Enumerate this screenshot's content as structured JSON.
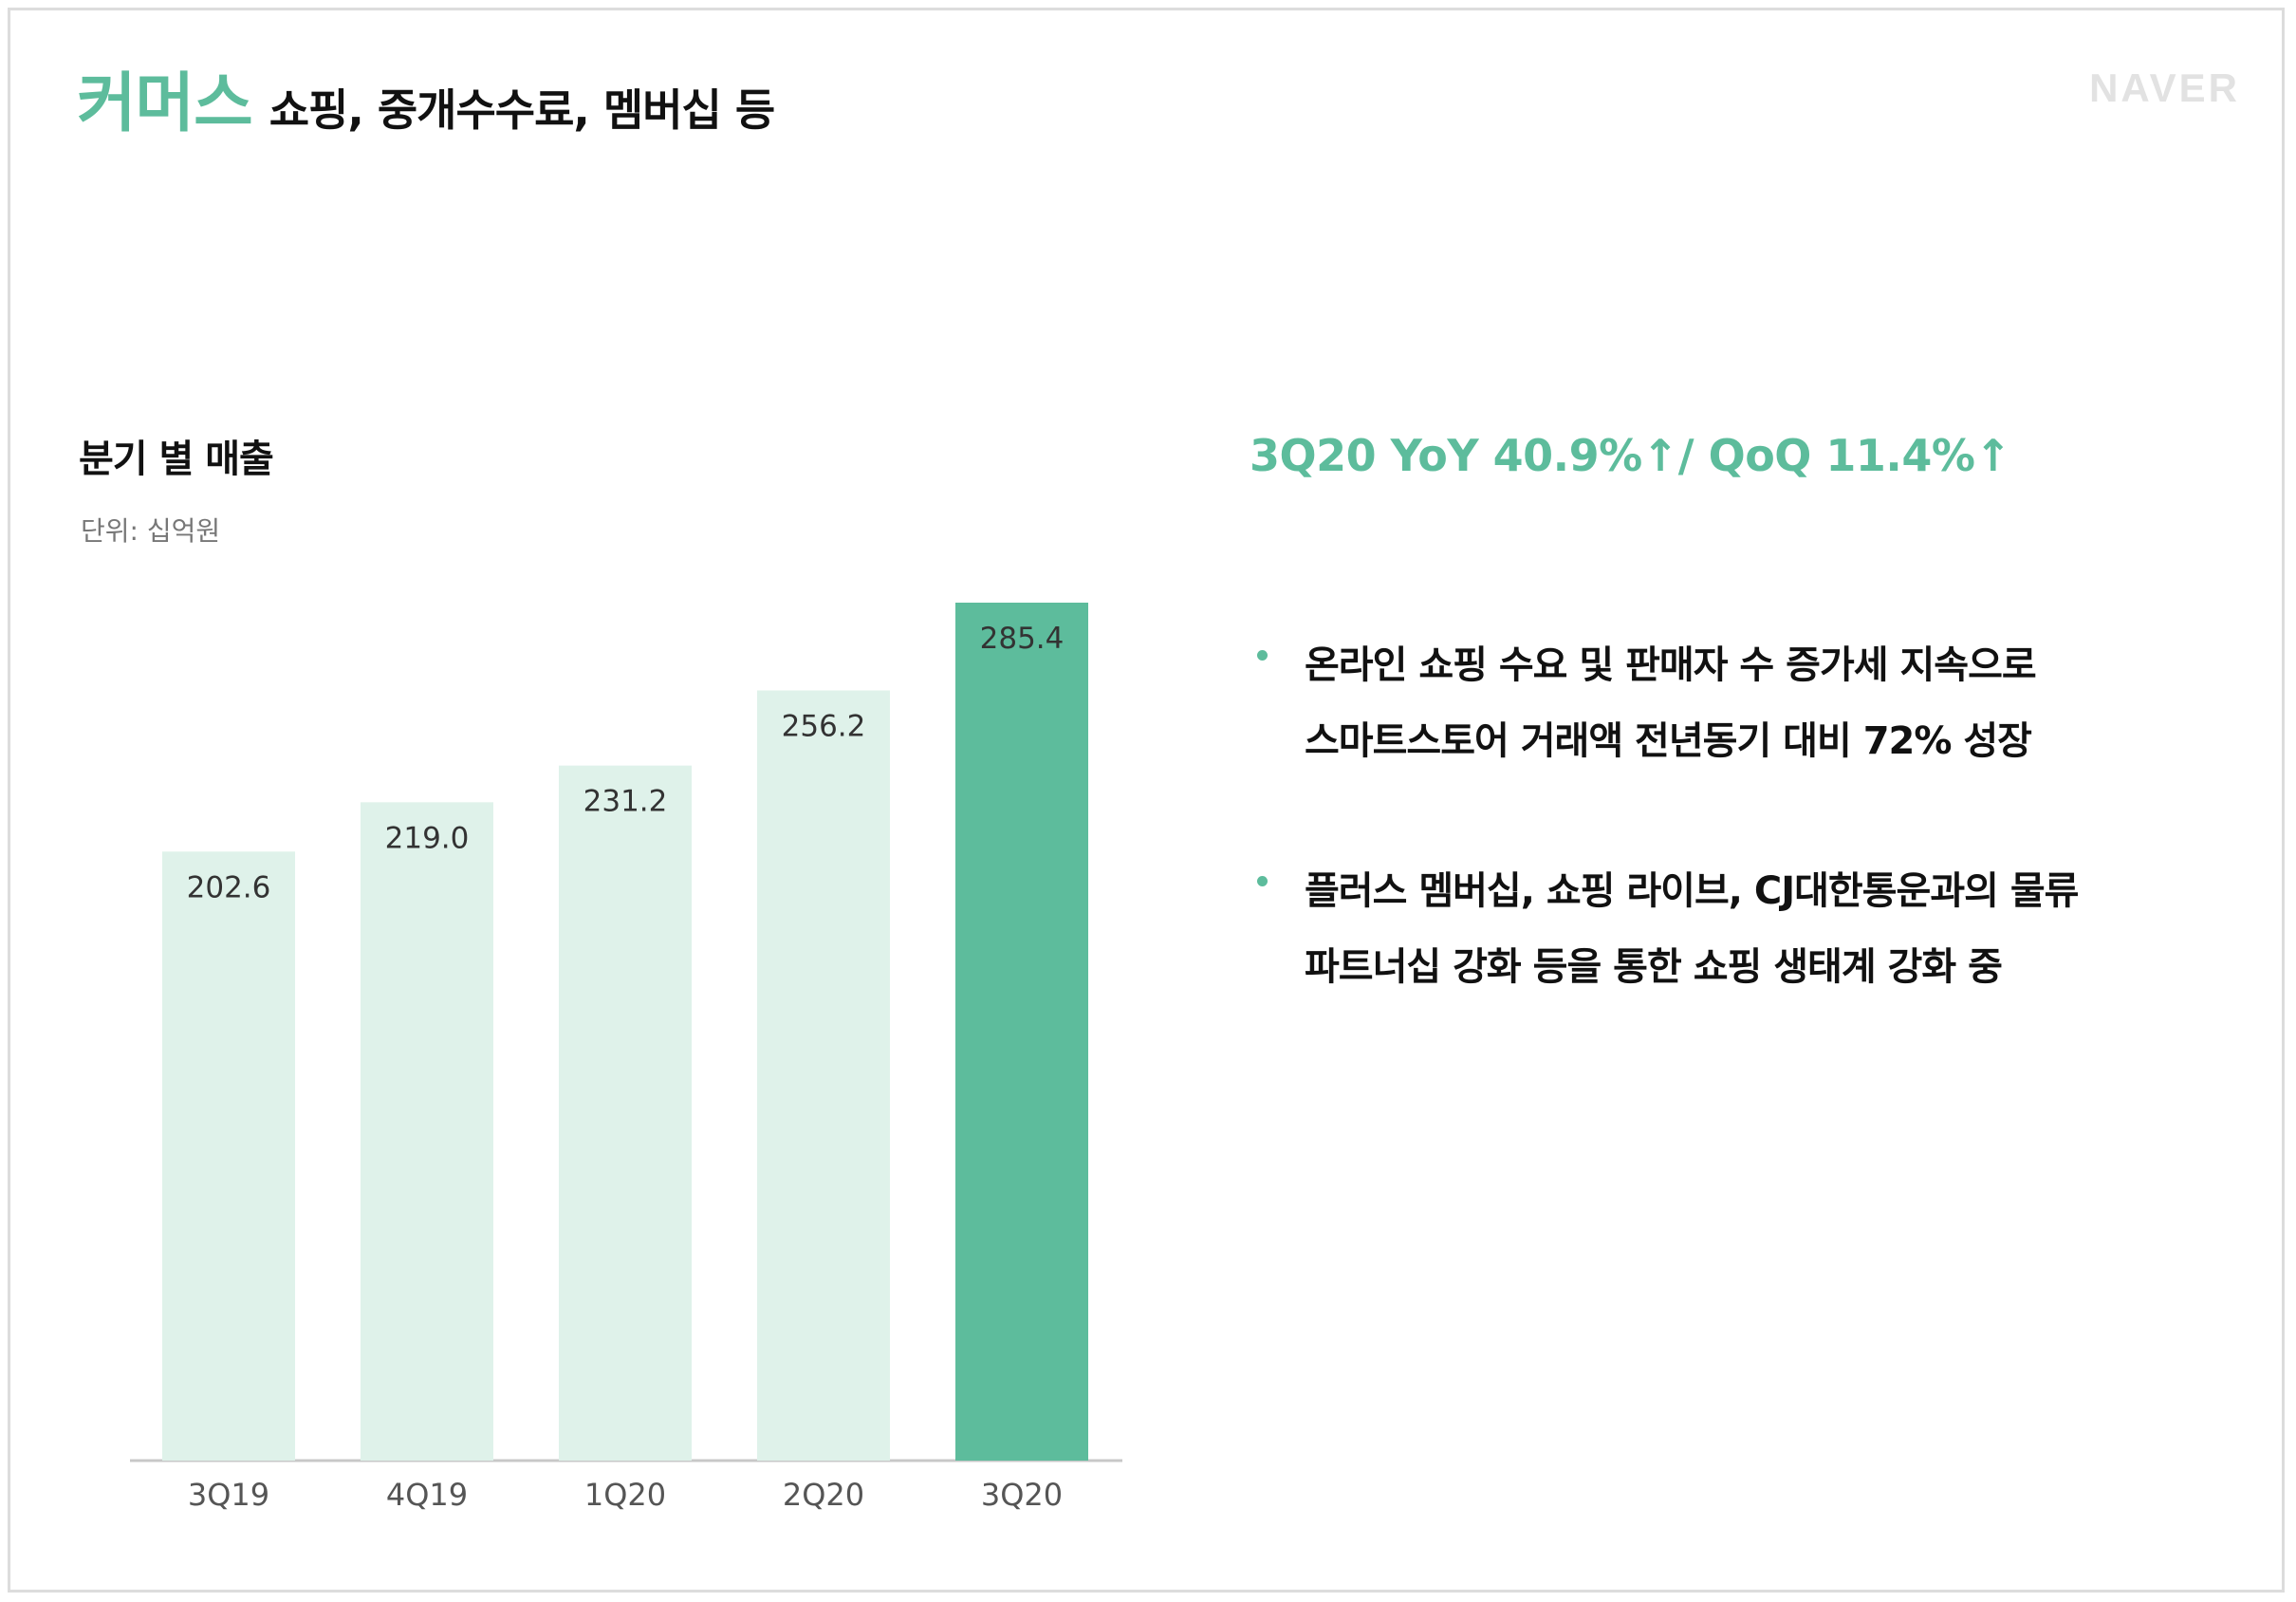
{
  "header": {
    "title_accent": "커머스",
    "title_rest": "쇼핑, 중개수수료, 멤버십 등",
    "logo": "NAVER"
  },
  "chart_panel": {
    "title": "분기 별 매출",
    "unit": "단위: 십억원"
  },
  "chart_data": {
    "type": "bar",
    "title": "분기 별 매출",
    "unit": "단위: 십억원",
    "categories": [
      "3Q19",
      "4Q19",
      "1Q20",
      "2Q20",
      "3Q20"
    ],
    "values": [
      202.6,
      219.0,
      231.2,
      256.2,
      285.4
    ],
    "value_labels": [
      "202.6",
      "219.0",
      "231.2",
      "256.2",
      "285.4"
    ],
    "highlight_index": 4,
    "colors": {
      "bar": "#dff2ea",
      "bar_highlight": "#5dbc9c",
      "axis": "#c8c8c8"
    },
    "grid": false,
    "legend": "none"
  },
  "summary": {
    "highlight": "3Q20 YoY 40.9%↑/ QoQ 11.4%↑",
    "bullets": [
      {
        "lines": [
          "온라인 쇼핑 수요 및 판매자 수 증가세 지속으로",
          "스마트스토어 거래액 전년동기 대비 72% 성장"
        ]
      },
      {
        "lines": [
          "플러스 멤버십, 쇼핑 라이브, CJ대한통운과의 물류",
          "파트너십 강화 등을 통한 쇼핑 생태계 강화 중"
        ]
      }
    ]
  }
}
